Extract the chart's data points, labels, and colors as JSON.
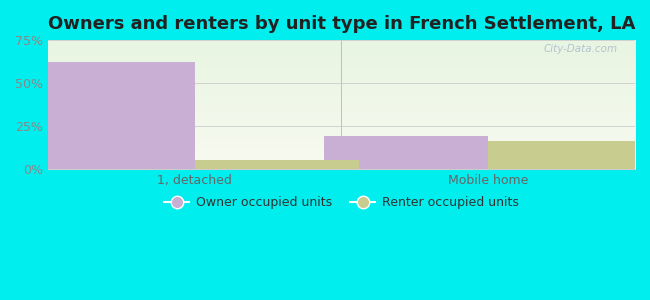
{
  "title": "Owners and renters by unit type in French Settlement, LA",
  "categories": [
    "1, detached",
    "Mobile home"
  ],
  "owner_values": [
    62,
    19
  ],
  "renter_values": [
    5,
    16
  ],
  "owner_color": "#c9afd4",
  "renter_color": "#c8cc8e",
  "ylim": [
    0,
    75
  ],
  "yticks": [
    0,
    25,
    50,
    75
  ],
  "yticklabels": [
    "0%",
    "25%",
    "50%",
    "75%"
  ],
  "bar_width": 0.28,
  "grad_top": "#e8f5e2",
  "grad_bottom": "#f8faf0",
  "outer_bg": "#00eeee",
  "watermark": "City-Data.com",
  "legend_labels": [
    "Owner occupied units",
    "Renter occupied units"
  ],
  "title_fontsize": 13,
  "axis_fontsize": 9,
  "legend_fontsize": 9,
  "group_centers": [
    0.25,
    0.75
  ],
  "xlim": [
    0.0,
    1.0
  ]
}
